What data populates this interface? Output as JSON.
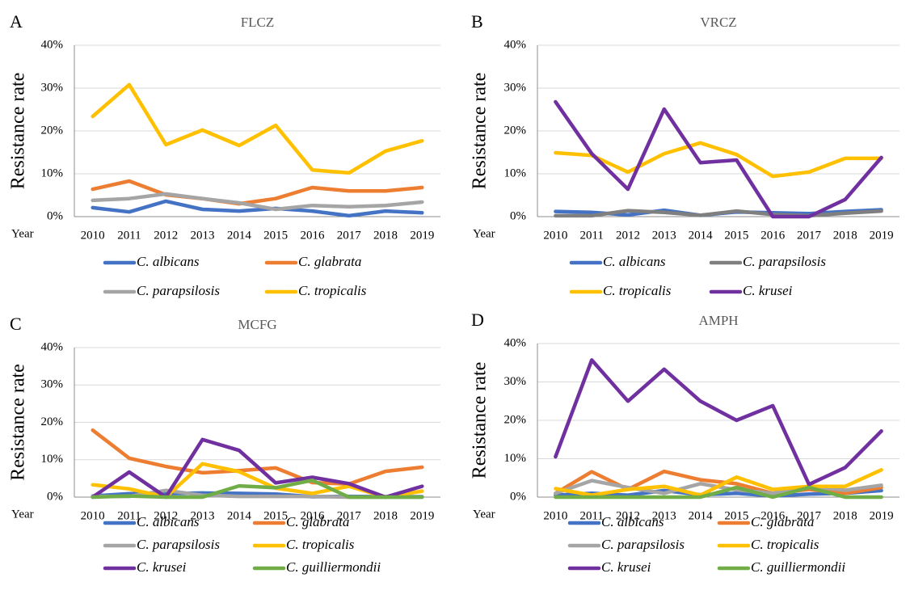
{
  "chart_data": [
    {
      "type": "line",
      "label": "A",
      "title": "FLCZ",
      "ylabel": "Resistance rate",
      "xlabel": "Year",
      "categories": [
        "2010",
        "2011",
        "2012",
        "2013",
        "2014",
        "2015",
        "2016",
        "2017",
        "2018",
        "2019"
      ],
      "ylim": [
        0,
        40
      ],
      "yticks": [
        {
          "value": 0,
          "label": "0%"
        },
        {
          "value": 10,
          "label": "10%"
        },
        {
          "value": 20,
          "label": "20%"
        },
        {
          "value": 30,
          "label": "30%"
        },
        {
          "value": 40,
          "label": "40%"
        }
      ],
      "grid": true,
      "series": [
        {
          "name": "C. albicans",
          "color": "#4472c4",
          "values": [
            2.1,
            1.1,
            3.6,
            1.7,
            1.3,
            1.9,
            1.3,
            0.2,
            1.3,
            0.9
          ]
        },
        {
          "name": "C. glabrata",
          "color": "#ed7d31",
          "values": [
            6.4,
            8.3,
            5.1,
            4.2,
            3.0,
            4.2,
            6.8,
            6.0,
            6.0,
            6.8
          ]
        },
        {
          "name": "C. parapsilosis",
          "color": "#a5a5a5",
          "values": [
            3.8,
            4.2,
            5.3,
            4.2,
            3.2,
            1.7,
            2.6,
            2.3,
            2.6,
            3.4
          ]
        },
        {
          "name": "C. tropicalis",
          "color": "#ffc000",
          "values": [
            23.4,
            30.8,
            16.8,
            20.2,
            16.6,
            21.3,
            10.9,
            10.2,
            15.3,
            17.7
          ]
        }
      ]
    },
    {
      "type": "line",
      "label": "B",
      "title": "VRCZ",
      "ylabel": "Resistance rate",
      "xlabel": "Year",
      "categories": [
        "2010",
        "2011",
        "2012",
        "2013",
        "2014",
        "2015",
        "2016",
        "2017",
        "2018",
        "2019"
      ],
      "ylim": [
        0,
        40
      ],
      "yticks": [
        {
          "value": 0,
          "label": "0%"
        },
        {
          "value": 10,
          "label": "10%"
        },
        {
          "value": 20,
          "label": "20%"
        },
        {
          "value": 30,
          "label": "30%"
        },
        {
          "value": 40,
          "label": "40%"
        }
      ],
      "grid": true,
      "series": [
        {
          "name": "C. albicans",
          "color": "#4472c4",
          "values": [
            1.2,
            1.0,
            0.4,
            1.5,
            0.3,
            1.1,
            0.9,
            0.7,
            1.2,
            1.6
          ]
        },
        {
          "name": "C. parapsilosis",
          "color": "#7f7f7f",
          "values": [
            0.2,
            0.2,
            1.4,
            1.0,
            0.3,
            1.3,
            0.5,
            0.2,
            0.8,
            1.3
          ]
        },
        {
          "name": "C. tropicalis",
          "color": "#ffc000",
          "values": [
            14.9,
            14.3,
            10.4,
            14.7,
            17.2,
            14.5,
            9.4,
            10.4,
            13.6,
            13.6
          ]
        },
        {
          "name": "C. krusei",
          "color": "#7030a0",
          "values": [
            26.8,
            14.7,
            6.4,
            25.1,
            12.6,
            13.2,
            0,
            0,
            4.0,
            13.8
          ]
        }
      ]
    },
    {
      "type": "line",
      "label": "C",
      "title": "MCFG",
      "ylabel": "Resistance rate",
      "xlabel": "Year",
      "categories": [
        "2010",
        "2011",
        "2012",
        "2013",
        "2014",
        "2015",
        "2016",
        "2017",
        "2018",
        "2019"
      ],
      "ylim": [
        0,
        40
      ],
      "yticks": [
        {
          "value": 0,
          "label": "0%"
        },
        {
          "value": 10,
          "label": "10%"
        },
        {
          "value": 20,
          "label": "20%"
        },
        {
          "value": 30,
          "label": "30%"
        },
        {
          "value": 40,
          "label": "40%"
        }
      ],
      "grid": true,
      "series": [
        {
          "name": "C. albicans",
          "color": "#4472c4",
          "values": [
            0.3,
            0.9,
            0.9,
            1.1,
            1.0,
            0.8,
            0.1,
            0.2,
            0.1,
            0.1
          ]
        },
        {
          "name": "C. glabrata",
          "color": "#ed7d31",
          "values": [
            17.9,
            10.4,
            8.2,
            6.5,
            7.1,
            7.8,
            3.9,
            3.5,
            6.9,
            8.0
          ]
        },
        {
          "name": "C. parapsilosis",
          "color": "#a5a5a5",
          "values": [
            0.2,
            0.2,
            1.8,
            0.5,
            0.2,
            0.2,
            0.2,
            0,
            0,
            0
          ]
        },
        {
          "name": "C. tropicalis",
          "color": "#ffc000",
          "values": [
            3.3,
            2.2,
            0,
            8.9,
            6.8,
            2.4,
            1.0,
            2.9,
            0,
            1.6
          ]
        },
        {
          "name": "C. krusei",
          "color": "#7030a0",
          "values": [
            0,
            6.7,
            0,
            15.4,
            12.5,
            3.8,
            5.3,
            3.6,
            0,
            2.9
          ]
        },
        {
          "name": "C. guilliermondii",
          "color": "#70ad47",
          "values": [
            0,
            0.3,
            0,
            0,
            3.0,
            2.5,
            4.5,
            0,
            0,
            0
          ]
        }
      ]
    },
    {
      "type": "line",
      "label": "D",
      "title": "AMPH",
      "ylabel": "Resistance rate",
      "xlabel": "Year",
      "categories": [
        "2010",
        "2011",
        "2012",
        "2013",
        "2014",
        "2015",
        "2016",
        "2017",
        "2018",
        "2019"
      ],
      "ylim": [
        0,
        40
      ],
      "yticks": [
        {
          "value": 0,
          "label": "0%"
        },
        {
          "value": 10,
          "label": "10%"
        },
        {
          "value": 20,
          "label": "20%"
        },
        {
          "value": 30,
          "label": "30%"
        },
        {
          "value": 40,
          "label": "40%"
        }
      ],
      "grid": true,
      "series": [
        {
          "name": "C. albicans",
          "color": "#4472c4",
          "values": [
            0.5,
            1.0,
            0.5,
            1.7,
            0.6,
            1.0,
            0.3,
            0.8,
            1.0,
            1.7
          ]
        },
        {
          "name": "C. glabrata",
          "color": "#ed7d31",
          "values": [
            1.0,
            6.6,
            2.0,
            6.7,
            4.5,
            3.5,
            1.0,
            2.0,
            1.0,
            2.5
          ]
        },
        {
          "name": "C. parapsilosis",
          "color": "#a5a5a5",
          "values": [
            1.0,
            4.3,
            2.5,
            1.0,
            3.5,
            1.9,
            1.0,
            2.8,
            1.8,
            3.1
          ]
        },
        {
          "name": "C. tropicalis",
          "color": "#ffc000",
          "values": [
            2.2,
            0.5,
            2.0,
            2.8,
            0.5,
            5.2,
            2.0,
            2.8,
            2.8,
            7.1
          ]
        },
        {
          "name": "C. krusei",
          "color": "#7030a0",
          "values": [
            10.5,
            35.7,
            25.0,
            33.3,
            25.0,
            20.0,
            23.8,
            3.3,
            7.7,
            17.2
          ]
        },
        {
          "name": "C. guilliermondii",
          "color": "#70ad47",
          "values": [
            0,
            0,
            0,
            0,
            0,
            2.5,
            0,
            2.5,
            0,
            0
          ]
        }
      ]
    }
  ]
}
